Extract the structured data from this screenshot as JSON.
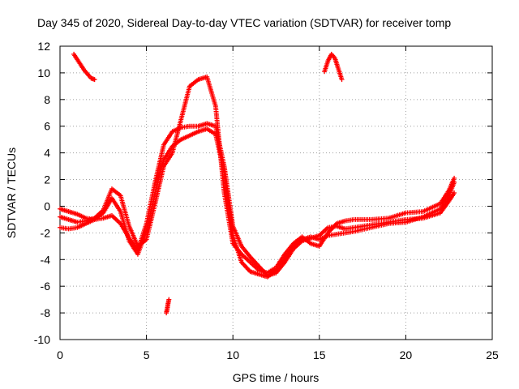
{
  "chart_data": {
    "type": "scatter",
    "title": "Day 345 of 2020, Sidereal Day-to-day VTEC variation (SDTVAR) for receiver tomp",
    "xlabel": "GPS time / hours",
    "ylabel": "SDTVAR / TECUs",
    "xlim": [
      0,
      25
    ],
    "ylim": [
      -10,
      12
    ],
    "xticks": [
      0,
      5,
      10,
      15,
      20,
      25
    ],
    "yticks": [
      -10,
      -8,
      -6,
      -4,
      -2,
      0,
      2,
      4,
      6,
      8,
      10,
      12
    ],
    "grid": true,
    "marker": "+",
    "series": [
      {
        "name": "SDTVAR",
        "color": "#ff0000",
        "traces": [
          {
            "id": "A",
            "x": [
              0.0,
              0.5,
              1.0,
              1.5,
              2.0,
              2.5,
              3.0,
              3.5,
              4.0,
              4.5,
              5.0,
              5.5,
              6.0,
              6.5,
              7.0,
              7.5,
              8.0,
              8.5,
              9.0,
              9.5,
              10.0,
              10.5,
              11.0,
              11.5,
              12.0,
              12.5,
              13.0,
              13.5,
              14.0,
              14.5,
              15.0,
              15.5,
              16.0,
              16.5,
              17.0,
              18.0,
              19.0,
              20.0,
              21.0,
              22.0,
              22.5,
              22.8
            ],
            "y": [
              -0.2,
              -0.4,
              -0.6,
              -0.9,
              -1.0,
              -0.9,
              -0.7,
              -1.3,
              -2.4,
              -3.3,
              -1.3,
              1.8,
              4.6,
              5.6,
              5.9,
              6.0,
              6.0,
              6.2,
              6.0,
              3.0,
              -1.5,
              -3.0,
              -3.8,
              -4.5,
              -5.2,
              -5.0,
              -4.2,
              -3.2,
              -2.6,
              -2.4,
              -2.2,
              -1.6,
              -1.5,
              -1.7,
              -1.6,
              -1.4,
              -1.2,
              -1.0,
              -0.9,
              -0.5,
              0.4,
              1.0
            ]
          },
          {
            "id": "B",
            "x": [
              0.0,
              0.5,
              1.0,
              1.5,
              2.0,
              2.5,
              3.0,
              3.5,
              4.0,
              4.5,
              5.0,
              5.5,
              6.0,
              6.5,
              7.0,
              7.5,
              8.0,
              8.5,
              9.0,
              9.5,
              10.0,
              10.5,
              11.0,
              11.5,
              12.0,
              12.5,
              13.0,
              13.5,
              14.0,
              14.5,
              15.0,
              15.5,
              16.0,
              16.5,
              17.0,
              18.0,
              19.0,
              20.0,
              21.0,
              22.0,
              22.5,
              22.8
            ],
            "y": [
              -1.6,
              -1.7,
              -1.6,
              -1.3,
              -1.0,
              -0.5,
              0.6,
              -0.4,
              -2.6,
              -3.6,
              -1.8,
              1.0,
              3.5,
              4.5,
              5.0,
              5.3,
              5.6,
              5.8,
              5.4,
              2.5,
              -2.2,
              -4.2,
              -4.9,
              -5.1,
              -5.3,
              -4.8,
              -4.0,
              -3.0,
              -2.5,
              -2.3,
              -2.5,
              -2.2,
              -2.1,
              -2.0,
              -1.9,
              -1.6,
              -1.3,
              -1.2,
              -0.8,
              -0.2,
              0.8,
              1.8
            ]
          },
          {
            "id": "C",
            "x": [
              0.0,
              0.5,
              1.0,
              1.5,
              2.0,
              2.5,
              3.0,
              3.5,
              4.0,
              4.5,
              5.0,
              5.5,
              6.0,
              6.5,
              7.0,
              7.5,
              8.0,
              8.5,
              9.0,
              9.5,
              10.0,
              10.5,
              11.0,
              11.5,
              12.0,
              12.5,
              13.0,
              13.5,
              14.0,
              14.5,
              15.0,
              15.5,
              16.0,
              16.5,
              17.0,
              18.0,
              19.0,
              20.0,
              21.0,
              22.0,
              22.5,
              22.8
            ],
            "y": [
              -0.8,
              -1.0,
              -1.2,
              -1.1,
              -0.9,
              -0.3,
              1.3,
              0.8,
              -1.5,
              -3.0,
              -2.5,
              0.2,
              3.0,
              4.0,
              6.5,
              9.0,
              9.5,
              9.7,
              7.5,
              1.0,
              -2.8,
              -3.6,
              -4.2,
              -4.8,
              -5.0,
              -4.6,
              -3.6,
              -2.8,
              -2.3,
              -2.8,
              -3.0,
              -2.0,
              -1.3,
              -1.1,
              -1.0,
              -1.0,
              -0.9,
              -0.5,
              -0.4,
              0.2,
              1.2,
              2.1
            ]
          },
          {
            "id": "D",
            "x": [
              0.8,
              1.0,
              1.2,
              1.4,
              1.6,
              1.8,
              2.0
            ],
            "y": [
              11.4,
              11.0,
              10.6,
              10.2,
              9.9,
              9.6,
              9.5
            ]
          },
          {
            "id": "E",
            "x": [
              15.3,
              15.5,
              15.7,
              15.9,
              16.1,
              16.3
            ],
            "y": [
              10.1,
              10.9,
              11.4,
              11.1,
              10.3,
              9.5
            ]
          },
          {
            "id": "F",
            "x": [
              6.15,
              6.2,
              6.25,
              6.3
            ],
            "y": [
              -8.0,
              -7.7,
              -7.3,
              -7.0
            ]
          }
        ]
      }
    ]
  }
}
